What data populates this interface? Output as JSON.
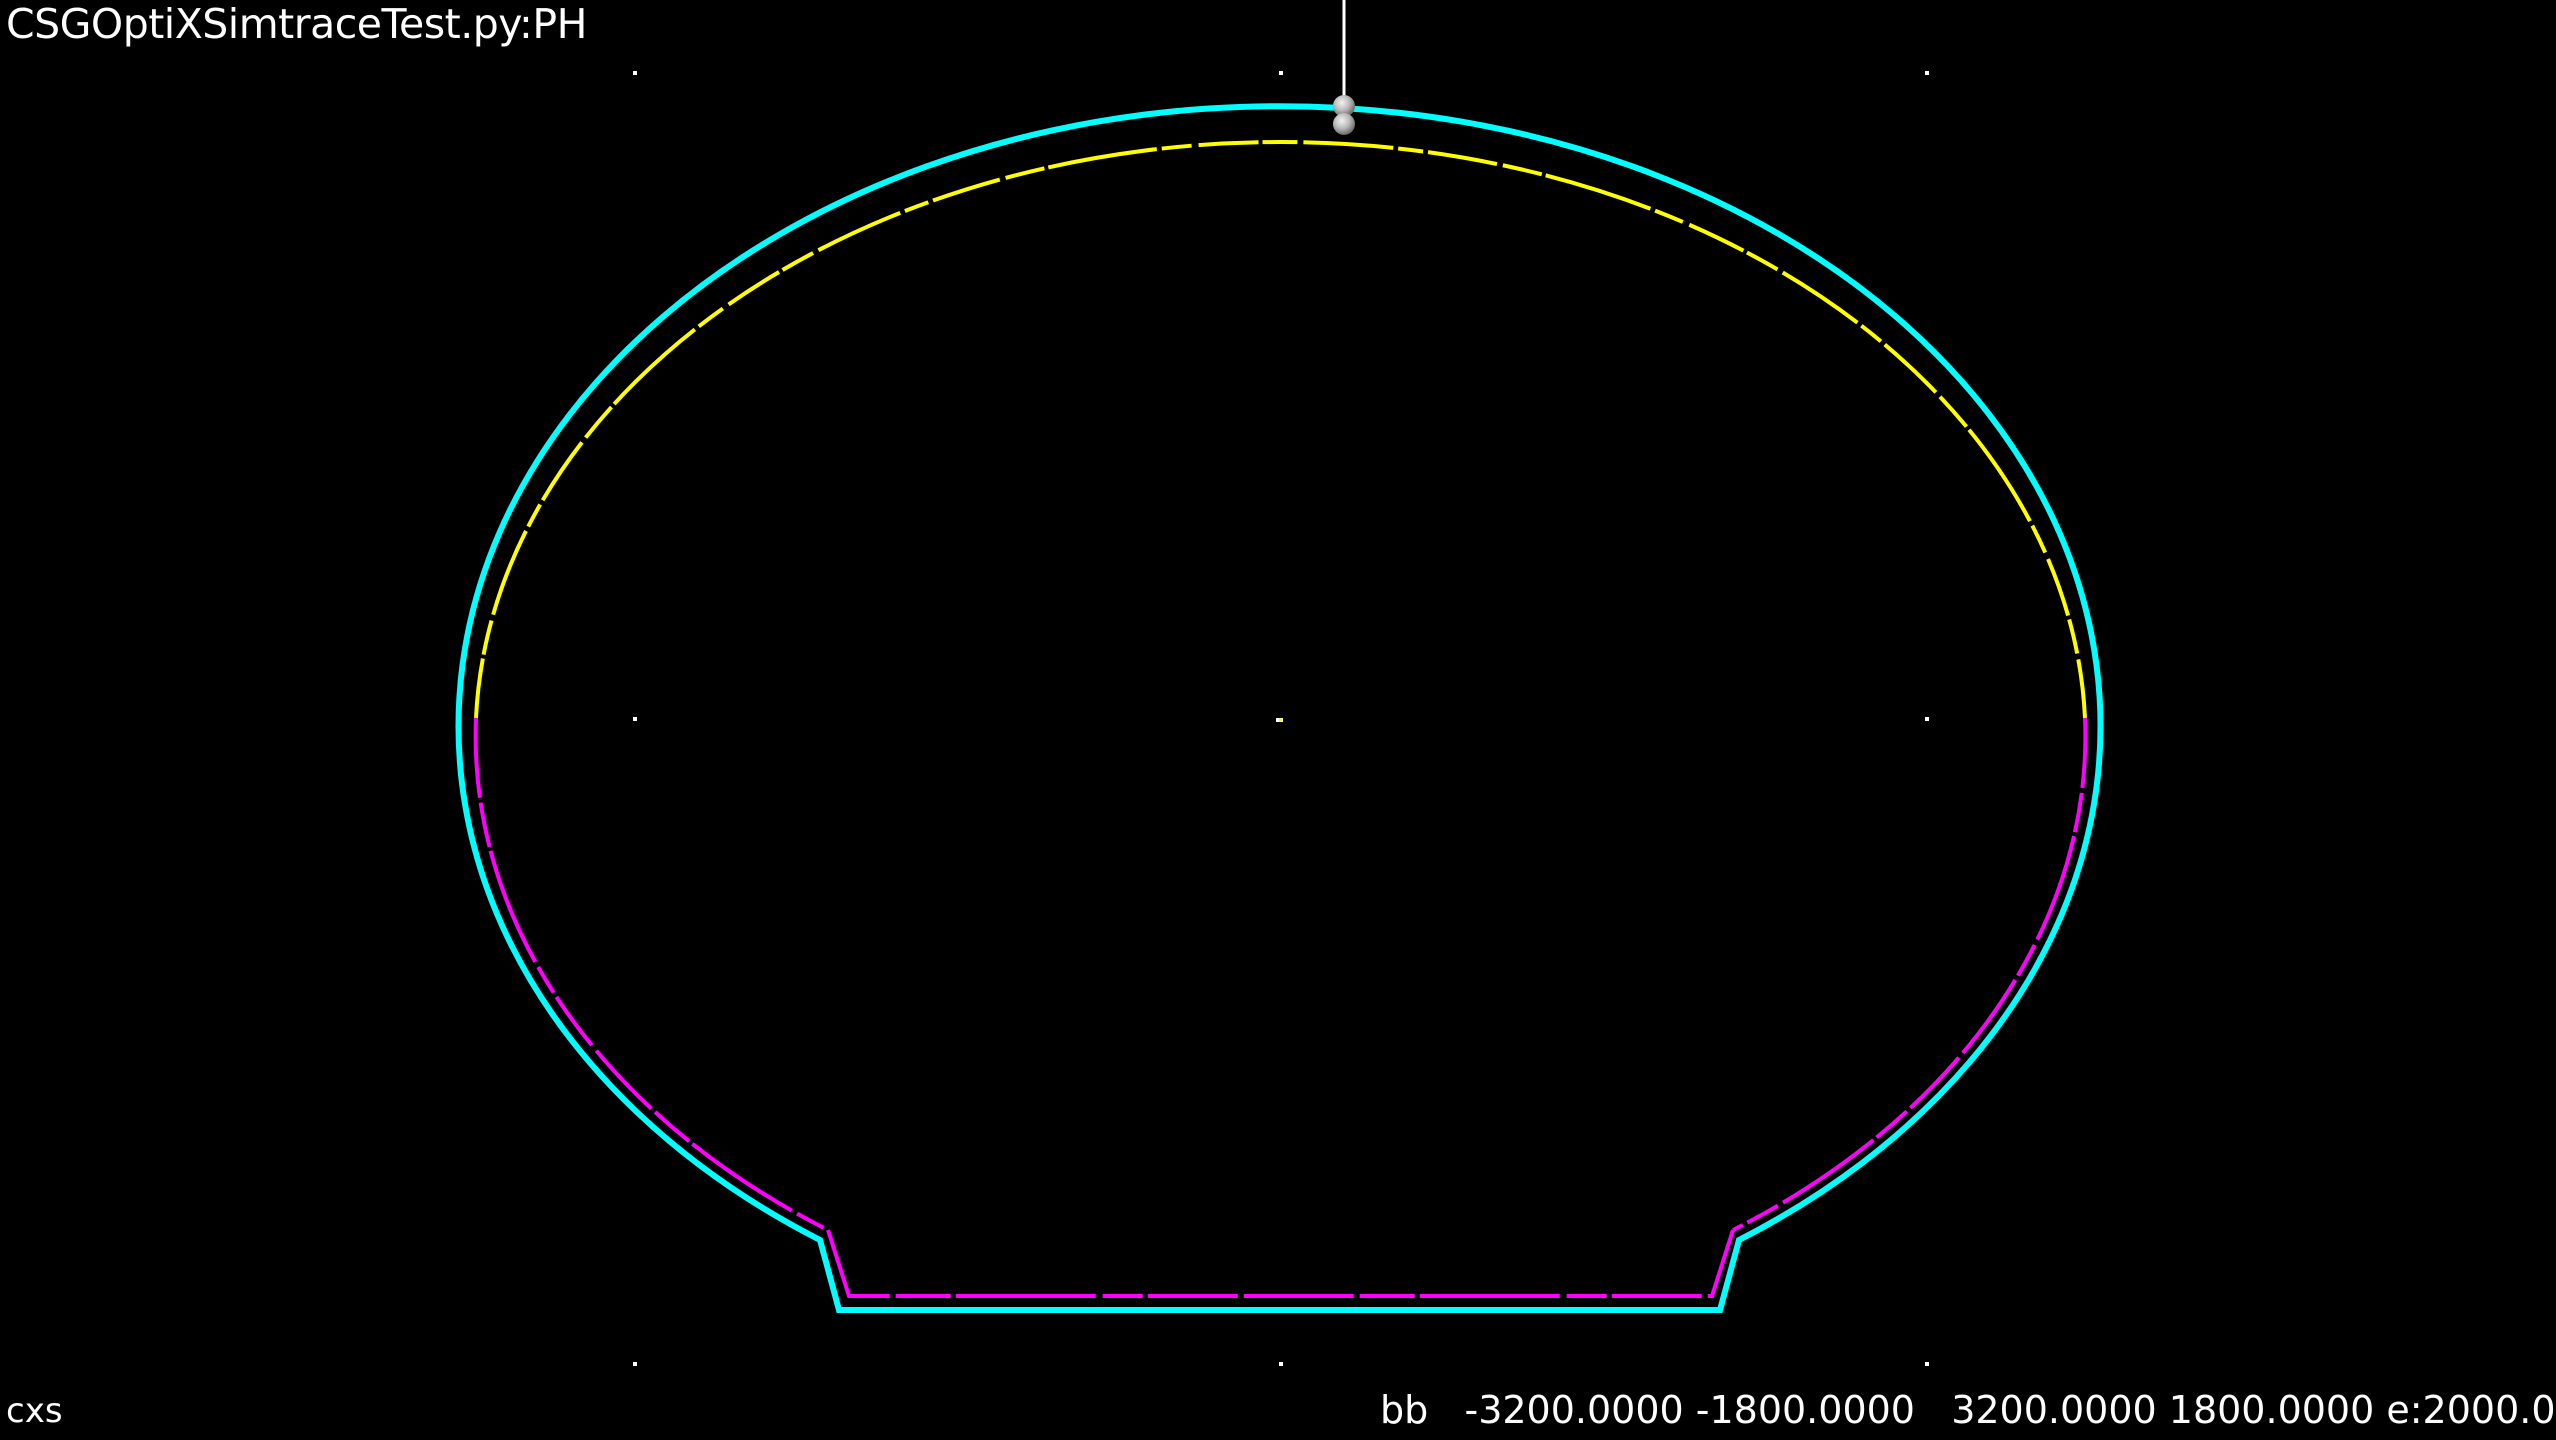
{
  "window": {
    "title": "CSGOptiXSimtraceTest.py:PH",
    "label": "cxs",
    "bbox_text": "bb   -3200.0000 -1800.0000   3200.0000 1800.0000 e:2000.0"
  },
  "colors": {
    "background": "#000000",
    "outer_boundary": "#00ffff",
    "upper_intersect": "#ffff00",
    "lower_intersect": "#ff00ff",
    "marker": "#ffffff",
    "probe": "#bdbdbd"
  },
  "icons": {
    "probe": "sphere-probe-icon",
    "markers": "dot-marker-icon"
  }
}
